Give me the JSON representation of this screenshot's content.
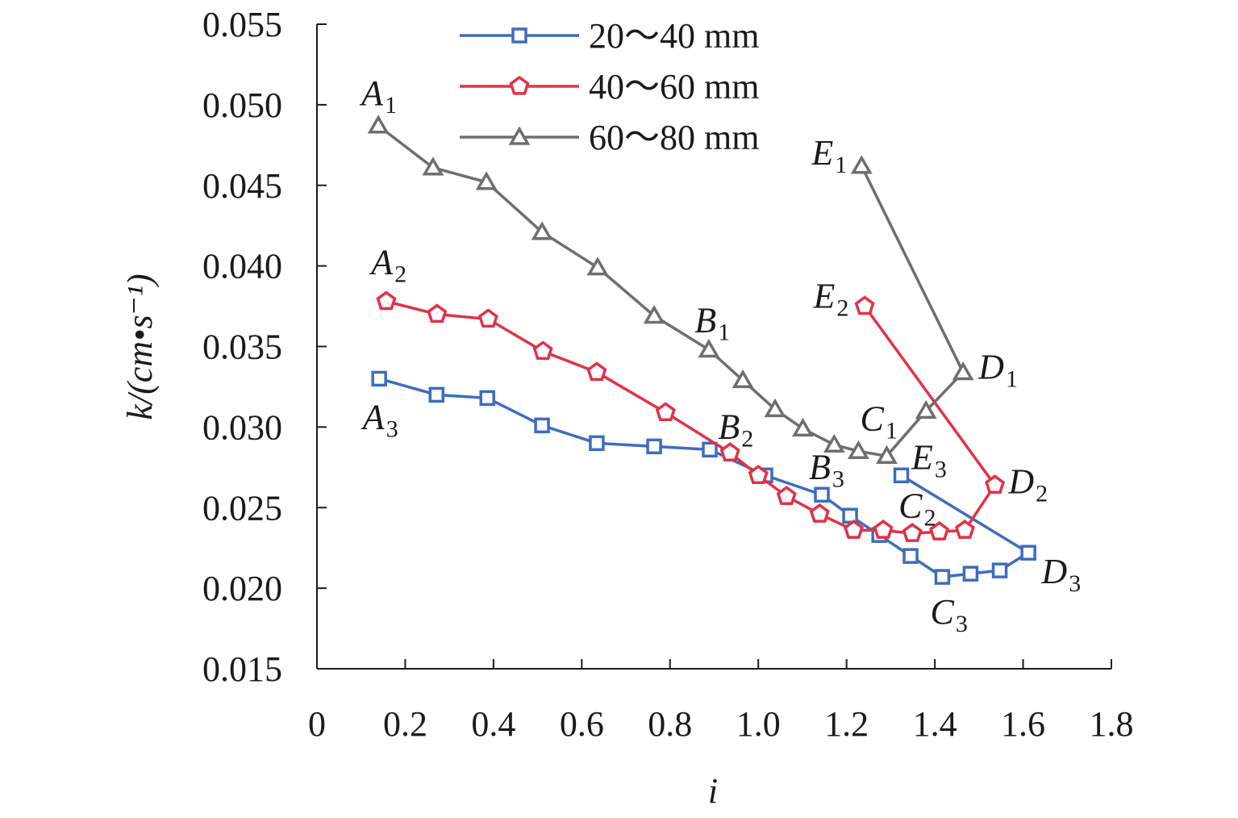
{
  "chart_data": {
    "type": "line",
    "xlabel": "i",
    "ylabel": "k/(cm•s⁻¹)",
    "xlim": [
      0,
      1.8
    ],
    "ylim": [
      0.015,
      0.055
    ],
    "xticks": [
      0,
      0.2,
      0.4,
      0.6,
      0.8,
      1.0,
      1.2,
      1.4,
      1.6,
      1.8
    ],
    "xtick_labels": [
      "0",
      "0.2",
      "0.4",
      "0.6",
      "0.8",
      "1.0",
      "1.2",
      "1.4",
      "1.6",
      "1.8"
    ],
    "yticks": [
      0.015,
      0.02,
      0.025,
      0.03,
      0.035,
      0.04,
      0.045,
      0.05,
      0.055
    ],
    "ytick_labels": [
      "0.015",
      "0.020",
      "0.025",
      "0.030",
      "0.035",
      "0.040",
      "0.045",
      "0.050",
      "0.055"
    ],
    "grid": false,
    "legend_position": "top-center",
    "series": [
      {
        "name": "20～40 mm",
        "color": "#3d6cc0",
        "marker": "square",
        "x": [
          0.141,
          0.271,
          0.386,
          0.51,
          0.634,
          0.764,
          0.89,
          1.016,
          1.144,
          1.208,
          1.274,
          1.345,
          1.417,
          1.481,
          1.547,
          1.612,
          1.324
        ],
        "y": [
          0.033,
          0.032,
          0.0318,
          0.0301,
          0.029,
          0.0288,
          0.0286,
          0.027,
          0.0258,
          0.0245,
          0.0233,
          0.022,
          0.0207,
          0.0209,
          0.0211,
          0.0222,
          0.027
        ]
      },
      {
        "name": "40～60 mm",
        "color": "#e03245",
        "marker": "pentagon",
        "x": [
          0.157,
          0.272,
          0.388,
          0.512,
          0.634,
          0.79,
          0.936,
          1.0,
          1.064,
          1.139,
          1.216,
          1.283,
          1.349,
          1.41,
          1.468,
          1.536,
          1.241
        ],
        "y": [
          0.0378,
          0.037,
          0.0367,
          0.0347,
          0.0334,
          0.0309,
          0.0284,
          0.027,
          0.0257,
          0.0246,
          0.0236,
          0.0236,
          0.0234,
          0.0235,
          0.0236,
          0.0264,
          0.0375
        ]
      },
      {
        "name": "60～80 mm",
        "color": "#6e6e6e",
        "marker": "triangle",
        "x": [
          0.139,
          0.263,
          0.384,
          0.51,
          0.636,
          0.764,
          0.888,
          0.965,
          1.038,
          1.101,
          1.172,
          1.227,
          1.291,
          1.38,
          1.464,
          1.234
        ],
        "y": [
          0.0487,
          0.0461,
          0.0452,
          0.0421,
          0.0399,
          0.0369,
          0.0348,
          0.0329,
          0.0311,
          0.0299,
          0.0289,
          0.0285,
          0.0282,
          0.031,
          0.0334,
          0.0462
        ]
      }
    ],
    "annotations": [
      {
        "label": "A",
        "sub": "1",
        "x": 0.141,
        "y": 0.0507
      },
      {
        "label": "A",
        "sub": "2",
        "x": 0.163,
        "y": 0.0402
      },
      {
        "label": "A",
        "sub": "3",
        "x": 0.144,
        "y": 0.0306
      },
      {
        "label": "B",
        "sub": "1",
        "x": 0.896,
        "y": 0.0366
      },
      {
        "label": "B",
        "sub": "2",
        "x": 0.949,
        "y": 0.03
      },
      {
        "label": "B",
        "sub": "3",
        "x": 1.155,
        "y": 0.0275
      },
      {
        "label": "C",
        "sub": "1",
        "x": 1.271,
        "y": 0.0305
      },
      {
        "label": "C",
        "sub": "2",
        "x": 1.358,
        "y": 0.0251
      },
      {
        "label": "C",
        "sub": "3",
        "x": 1.43,
        "y": 0.0185
      },
      {
        "label": "D",
        "sub": "1",
        "x": 1.539,
        "y": 0.0337
      },
      {
        "label": "D",
        "sub": "2",
        "x": 1.607,
        "y": 0.0266
      },
      {
        "label": "D",
        "sub": "3",
        "x": 1.682,
        "y": 0.021
      },
      {
        "label": "E",
        "sub": "1",
        "x": 1.161,
        "y": 0.047
      },
      {
        "label": "E",
        "sub": "2",
        "x": 1.165,
        "y": 0.0381
      },
      {
        "label": "E",
        "sub": "3",
        "x": 1.387,
        "y": 0.0281
      }
    ]
  }
}
